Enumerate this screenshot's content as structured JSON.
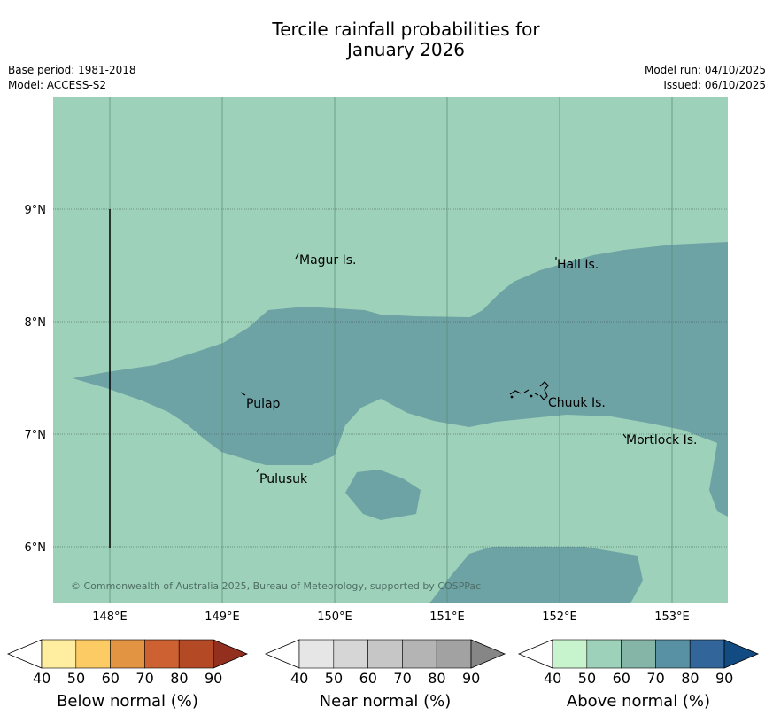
{
  "title": {
    "line1": "Tercile rainfall probabilities for",
    "line2": "January 2026"
  },
  "meta": {
    "base_period": "Base period: 1981-2018",
    "model": "Model: ACCESS-S2",
    "model_run": "Model run: 04/10/2025",
    "issued": "Issued: 06/10/2025"
  },
  "map": {
    "lon_labels": [
      "148°E",
      "149°E",
      "150°E",
      "151°E",
      "152°E",
      "153°E"
    ],
    "lat_labels": [
      "9°N",
      "8°N",
      "7°N",
      "6°N"
    ],
    "places": [
      "Magur Is.",
      "Hall Is.",
      "Pulap",
      "Chuuk Is.",
      "Mortlock Is.",
      "Pulusuk"
    ],
    "copyright": "© Commonwealth of Australia 2025, Bureau of Meteorology, supported by COSPPac",
    "colors": {
      "ocean_50_60": "#9dd1b9",
      "above_70": "#6ea3a6"
    }
  },
  "colorbars": [
    {
      "label": "Below normal (%)",
      "ticks": [
        "40",
        "50",
        "60",
        "70",
        "80",
        "90"
      ],
      "colors": [
        "#ffeda0",
        "#fdcb63",
        "#e39442",
        "#cd6131",
        "#b34925",
        "#932f1f"
      ]
    },
    {
      "label": "Near normal (%)",
      "ticks": [
        "40",
        "50",
        "60",
        "70",
        "80",
        "90"
      ],
      "colors": [
        "#e6e6e6",
        "#d6d6d6",
        "#c6c6c6",
        "#b4b4b4",
        "#a2a2a2",
        "#868686"
      ]
    },
    {
      "label": "Above normal (%)",
      "ticks": [
        "40",
        "50",
        "60",
        "70",
        "80",
        "90"
      ],
      "colors": [
        "#c7f4cd",
        "#9dd1b9",
        "#84b5a6",
        "#5991a4",
        "#32669a",
        "#124b82"
      ]
    }
  ]
}
